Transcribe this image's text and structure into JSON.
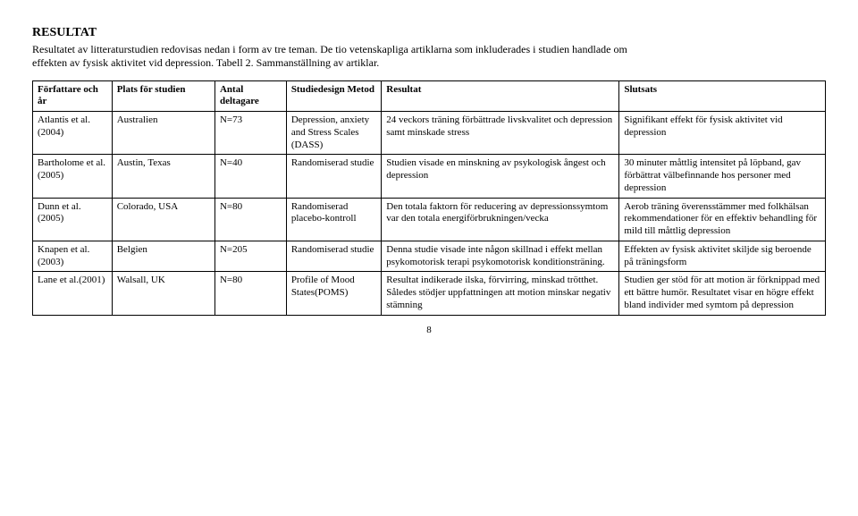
{
  "heading": "RESULTAT",
  "intro": "Resultatet av litteraturstudien redovisas nedan i form av tre teman. De tio vetenskapliga artiklarna som inkluderades i studien handlade om effekten av fysisk aktivitet vid depression. Tabell 2. Sammanställning av artiklar.",
  "headers": {
    "author": "Författare och år",
    "place": "Plats för studien",
    "n": "Antal deltagare",
    "design": "Studiedesign Metod",
    "result": "Resultat",
    "conclusion": "Slutsats"
  },
  "rows": [
    {
      "author": "Atlantis et al. (2004)",
      "place": "Australien",
      "n": "N=73",
      "design": "Depression, anxiety and Stress Scales (DASS)",
      "result": "24 veckors träning förbättrade livskvalitet och depression samt minskade stress",
      "conclusion": "Signifikant effekt för fysisk aktivitet vid depression"
    },
    {
      "author": "Bartholome et al. (2005)",
      "place": "Austin, Texas",
      "n": "N=40",
      "design": "Randomiserad studie",
      "result": "Studien visade en minskning av psykologisk ångest och depression",
      "conclusion": "30 minuter måttlig intensitet på löpband, gav förbättrat välbefinnande hos personer med depression"
    },
    {
      "author": "Dunn et al. (2005)",
      "place": "Colorado, USA",
      "n": "N=80",
      "design": "Randomiserad placebo-kontroll",
      "result": "Den totala faktorn för reducering av depressionssymtom var den totala energiförbrukningen/vecka",
      "conclusion": "Aerob träning överensstämmer med folkhälsan rekommendationer för en effektiv behandling för mild till måttlig depression"
    },
    {
      "author": "Knapen et al. (2003)",
      "place": "Belgien",
      "n": "N=205",
      "design": "Randomiserad studie",
      "result": "Denna studie visade inte någon skillnad i effekt mellan psykomotorisk terapi psykomotorisk konditionsträning.",
      "conclusion": "Effekten av fysisk aktivitet skiljde sig beroende på träningsform"
    },
    {
      "author": "Lane et al.(2001)",
      "place": "Walsall, UK",
      "n": "N=80",
      "design": "Profile of Mood States(POMS)",
      "result": "Resultat indikerade ilska, förvirring, minskad trötthet. Således stödjer uppfattningen att motion minskar negativ stämning",
      "conclusion": "Studien ger stöd för att motion är förknippad med ett bättre humör. Resultatet visar en högre effekt bland individer med symtom på depression"
    }
  ],
  "pagenum": "8"
}
